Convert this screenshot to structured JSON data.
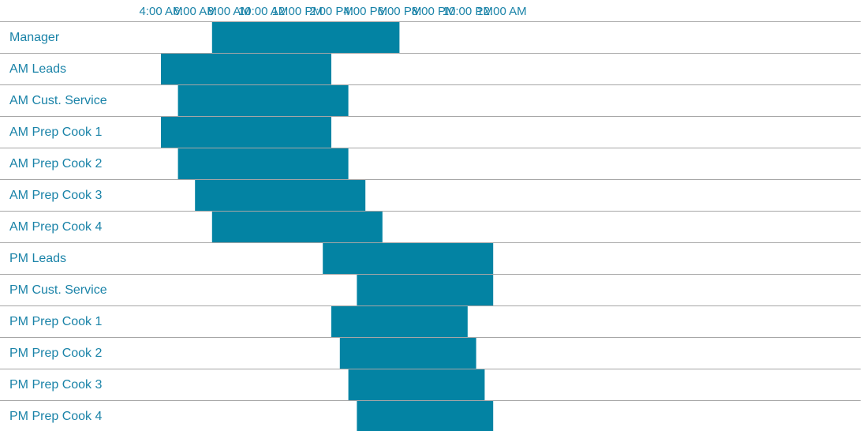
{
  "chart_data": {
    "type": "bar",
    "orientation": "horizontal-range",
    "title": "",
    "xlabel": "",
    "ylabel": "",
    "x_unit": "hour of day",
    "x_range": [
      1.5,
      24.5
    ],
    "x_ticks": [
      {
        "hour": 4,
        "label": "4:00 AM"
      },
      {
        "hour": 6,
        "label": "6:00 AM"
      },
      {
        "hour": 8,
        "label": "8:00 AM"
      },
      {
        "hour": 10,
        "label": "10:00 AM"
      },
      {
        "hour": 12,
        "label": "12:00 PM"
      },
      {
        "hour": 14,
        "label": "2:00 PM"
      },
      {
        "hour": 16,
        "label": "4:00 PM"
      },
      {
        "hour": 18,
        "label": "6:00 PM"
      },
      {
        "hour": 20,
        "label": "8:00 PM"
      },
      {
        "hour": 22,
        "label": "10:00 PM"
      },
      {
        "hour": 24,
        "label": "12:00 AM"
      }
    ],
    "grid": "horizontal row separators",
    "legend": "none",
    "colors": {
      "bar": "#0383a3",
      "text": "#1a83a8",
      "grid": "#a6a6a6"
    },
    "categories": [
      "Manager",
      "AM Leads",
      "AM Cust. Service",
      "AM Prep Cook 1",
      "AM Prep Cook 2",
      "AM Prep Cook 3",
      "AM Prep Cook 4",
      "PM Leads",
      "PM Cust. Service",
      "PM Prep Cook 1",
      "PM Prep Cook 2",
      "PM Prep Cook 3",
      "PM Prep Cook 4"
    ],
    "ranges": [
      [
        7,
        18
      ],
      [
        4,
        14
      ],
      [
        5,
        15
      ],
      [
        4,
        14
      ],
      [
        5,
        15
      ],
      [
        6,
        16
      ],
      [
        7,
        17
      ],
      [
        13.5,
        23.5
      ],
      [
        15.5,
        23.5
      ],
      [
        14,
        22
      ],
      [
        14.5,
        22.5
      ],
      [
        15,
        23
      ],
      [
        15.5,
        23.5
      ]
    ]
  }
}
